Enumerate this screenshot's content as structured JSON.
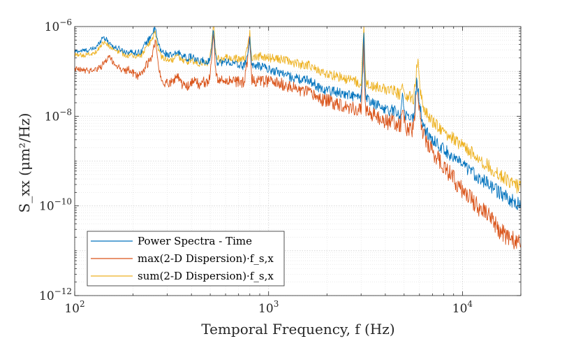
{
  "chart_data": {
    "type": "line",
    "xscale": "log",
    "yscale": "log",
    "xlim": [
      100,
      20000
    ],
    "ylim": [
      1e-12,
      1e-06
    ],
    "grid": true,
    "minor_grid": true,
    "legend_position": "bottom-left",
    "xlabel": "Temporal Frequency, f (Hz)",
    "ylabel": "S_xx (μm²/Hz)",
    "x_ticks": [
      {
        "value": 100,
        "base": "10",
        "exp": "2"
      },
      {
        "value": 1000,
        "base": "10",
        "exp": "3"
      },
      {
        "value": 10000,
        "base": "10",
        "exp": "4"
      }
    ],
    "y_ticks": [
      {
        "value": 1e-12,
        "base": "10",
        "exp": "−12"
      },
      {
        "value": 1e-10,
        "base": "10",
        "exp": "−10"
      },
      {
        "value": 1e-08,
        "base": "10",
        "exp": "−8"
      },
      {
        "value": 1e-06,
        "base": "10",
        "exp": "−6"
      }
    ],
    "series": [
      {
        "name": "Power Spectra - Time",
        "color": "#0072BD",
        "x": [
          100,
          110,
          120,
          130,
          140,
          150,
          160,
          170,
          180,
          190,
          200,
          210,
          220,
          230,
          240,
          250,
          260,
          270,
          280,
          290,
          300,
          320,
          340,
          360,
          380,
          400,
          420,
          440,
          460,
          480,
          500,
          510,
          520,
          530,
          540,
          560,
          580,
          600,
          650,
          700,
          750,
          780,
          800,
          820,
          850,
          900,
          950,
          1000,
          1100,
          1200,
          1300,
          1400,
          1500,
          1600,
          1700,
          1800,
          1900,
          2000,
          2200,
          2400,
          2600,
          2800,
          3000,
          3050,
          3100,
          3150,
          3200,
          3400,
          3600,
          3800,
          4000,
          4200,
          4400,
          4600,
          4800,
          4900,
          5000,
          5100,
          5200,
          5400,
          5600,
          5800,
          5900,
          6000,
          6200,
          6400,
          6600,
          6800,
          7000,
          7500,
          8000,
          8500,
          9000,
          10000,
          11000,
          12000,
          13000,
          14000,
          15000,
          16000,
          17000,
          18000,
          19000,
          20000
        ],
        "y": [
          2.8e-07,
          2.9e-07,
          3e-07,
          3.5e-07,
          6e-07,
          4.5e-07,
          3.4e-07,
          3.2e-07,
          2.8e-07,
          2.7e-07,
          2.7e-07,
          2.6e-07,
          2.8e-07,
          4e-07,
          5e-07,
          7e-07,
          9e-07,
          4e-07,
          2.8e-07,
          2.6e-07,
          2.4e-07,
          2.2e-07,
          2.7e-07,
          2.3e-07,
          1.9e-07,
          2.2e-07,
          1.8e-07,
          1.6e-07,
          1.8e-07,
          1.4e-07,
          2.2e-07,
          4e-07,
          9e-07,
          3e-07,
          1.6e-07,
          1.7e-07,
          1.5e-07,
          1.7e-07,
          1.5e-07,
          1.4e-07,
          1.3e-07,
          2.5e-07,
          5e-07,
          1.4e-07,
          1.3e-07,
          1.3e-07,
          1.3e-07,
          1.1e-07,
          1e-07,
          9e-08,
          7.5e-08,
          7e-08,
          6.3e-08,
          6.6e-08,
          5.5e-08,
          4.5e-08,
          4e-08,
          3.8e-08,
          3.6e-08,
          3.2e-08,
          3e-08,
          2.7e-08,
          2.5e-08,
          1e-07,
          8e-07,
          4e-08,
          2.4e-08,
          2e-08,
          1.8e-08,
          1.6e-08,
          1.5e-08,
          1.3e-08,
          1.4e-08,
          1.2e-08,
          1.1e-08,
          3e-08,
          1.4e-08,
          1.1e-08,
          9e-09,
          1e-08,
          9e-09,
          5.5e-08,
          4e-08,
          2e-08,
          8e-09,
          5e-09,
          4.2e-09,
          3.5e-09,
          3e-09,
          2.4e-09,
          1.8e-09,
          1.5e-09,
          1.2e-09,
          8e-10,
          6e-10,
          4.5e-10,
          3.5e-10,
          2.8e-10,
          2.2e-10,
          1.8e-10,
          1.5e-10,
          1.3e-10,
          1.15e-10,
          1.05e-10
        ]
      },
      {
        "name": "max(2-D Dispersion)·f_s,x",
        "color": "#D95319",
        "x": [
          100,
          110,
          120,
          130,
          140,
          150,
          160,
          170,
          180,
          190,
          200,
          210,
          220,
          230,
          240,
          250,
          260,
          270,
          280,
          290,
          300,
          320,
          340,
          360,
          380,
          400,
          420,
          440,
          460,
          480,
          500,
          510,
          520,
          530,
          540,
          560,
          580,
          600,
          650,
          700,
          750,
          780,
          800,
          820,
          850,
          900,
          950,
          1000,
          1100,
          1200,
          1300,
          1400,
          1500,
          1600,
          1700,
          1800,
          1900,
          2000,
          2200,
          2400,
          2600,
          2800,
          3000,
          3050,
          3100,
          3150,
          3200,
          3400,
          3600,
          3800,
          4000,
          4200,
          4400,
          4600,
          4800,
          4900,
          5000,
          5100,
          5200,
          5400,
          5600,
          5800,
          5900,
          6000,
          6200,
          6400,
          6600,
          6800,
          7000,
          7500,
          8000,
          8500,
          9000,
          10000,
          11000,
          12000,
          13000,
          14000,
          15000,
          16000,
          17000,
          18000,
          19000,
          20000
        ],
        "y": [
          1.1e-07,
          1.05e-07,
          1.05e-07,
          1.1e-07,
          1.4e-07,
          2.2e-07,
          1.5e-07,
          1.2e-07,
          1e-07,
          1.1e-07,
          9e-08,
          8e-08,
          9e-08,
          1.2e-07,
          1.6e-07,
          2e-07,
          5e-07,
          1.4e-07,
          6e-08,
          5.5e-08,
          5.5e-08,
          6e-08,
          8e-08,
          5e-08,
          4.5e-08,
          5.5e-08,
          6e-08,
          5e-08,
          6e-08,
          5.5e-08,
          8e-08,
          2e-07,
          8e-07,
          1.5e-07,
          7e-08,
          6.5e-08,
          6e-08,
          6.5e-08,
          6e-08,
          6e-08,
          5.5e-08,
          2e-07,
          6e-07,
          6.5e-08,
          6e-08,
          6e-08,
          6e-08,
          6e-08,
          5.5e-08,
          5e-08,
          4.5e-08,
          4e-08,
          3.6e-08,
          3.3e-08,
          3e-08,
          2.6e-08,
          2.3e-08,
          2.2e-08,
          2e-08,
          1.8e-08,
          1.6e-08,
          1.5e-08,
          1.3e-08,
          6e-08,
          4e-07,
          2e-08,
          1.3e-08,
          1.1e-08,
          1e-08,
          8.5e-09,
          8e-09,
          7e-09,
          8e-09,
          6.5e-09,
          6e-09,
          2e-08,
          8e-09,
          6e-09,
          5e-09,
          5.5e-09,
          5e-09,
          4e-08,
          3.5e-08,
          1.5e-08,
          5e-09,
          3e-09,
          2.5e-09,
          2e-09,
          1.6e-09,
          1.1e-09,
          8e-10,
          5.5e-10,
          4e-10,
          2.2e-10,
          1.5e-10,
          1e-10,
          7e-11,
          5e-11,
          3.5e-11,
          2.6e-11,
          2.1e-11,
          1.8e-11,
          1.5e-11,
          1.3e-11
        ]
      },
      {
        "name": "sum(2-D Dispersion)·f_s,x",
        "color": "#EDB120",
        "x": [
          100,
          110,
          120,
          130,
          140,
          150,
          160,
          170,
          180,
          190,
          200,
          210,
          220,
          230,
          240,
          250,
          260,
          270,
          280,
          290,
          300,
          320,
          340,
          360,
          380,
          400,
          420,
          440,
          460,
          480,
          500,
          510,
          520,
          530,
          540,
          560,
          580,
          600,
          650,
          700,
          750,
          780,
          800,
          820,
          850,
          900,
          950,
          1000,
          1100,
          1200,
          1300,
          1400,
          1500,
          1600,
          1700,
          1800,
          1900,
          2000,
          2200,
          2400,
          2600,
          2800,
          3000,
          3050,
          3100,
          3150,
          3200,
          3400,
          3600,
          3800,
          4000,
          4200,
          4400,
          4600,
          4800,
          4900,
          5000,
          5100,
          5200,
          5400,
          5600,
          5800,
          5900,
          6000,
          6200,
          6400,
          6600,
          6800,
          7000,
          7500,
          8000,
          8500,
          9000,
          10000,
          11000,
          12000,
          13000,
          14000,
          15000,
          16000,
          17000,
          18000,
          19000,
          20000
        ],
        "y": [
          2.3e-07,
          2.3e-07,
          2.4e-07,
          2.8e-07,
          4.5e-07,
          3.8e-07,
          3e-07,
          2.7e-07,
          2.4e-07,
          2.3e-07,
          2.2e-07,
          2.2e-07,
          2.3e-07,
          3e-07,
          4e-07,
          5e-07,
          8e-07,
          3e-07,
          2e-07,
          1.9e-07,
          1.8e-07,
          1.8e-07,
          2.2e-07,
          1.8e-07,
          1.6e-07,
          1.8e-07,
          1.6e-07,
          1.5e-07,
          1.7e-07,
          1.5e-07,
          2.2e-07,
          4.5e-07,
          1.2e-06,
          3.5e-07,
          2e-07,
          1.9e-07,
          1.8e-07,
          2e-07,
          1.9e-07,
          1.9e-07,
          1.8e-07,
          3.5e-07,
          7e-07,
          2e-07,
          2e-07,
          2.2e-07,
          2.1e-07,
          2e-07,
          1.9e-07,
          1.8e-07,
          1.6e-07,
          1.5e-07,
          1.4e-07,
          1.4e-07,
          1.2e-07,
          1e-07,
          9.5e-08,
          9e-08,
          8e-08,
          7e-08,
          6.5e-08,
          6e-08,
          5.5e-08,
          2e-07,
          9e-07,
          8e-08,
          5.5e-08,
          5e-08,
          4.5e-08,
          4.2e-08,
          4e-08,
          3.5e-08,
          3.8e-08,
          3.2e-08,
          3e-08,
          7e-08,
          3.5e-08,
          3e-08,
          2.5e-08,
          2.7e-08,
          2.5e-08,
          1.2e-07,
          1.4e-07,
          5e-08,
          2.2e-08,
          1.3e-08,
          1.1e-08,
          9e-09,
          7.5e-09,
          6e-09,
          4.5e-09,
          3.8e-09,
          3.2e-09,
          2.2e-09,
          1.6e-09,
          1.2e-09,
          9e-10,
          7e-10,
          5.5e-10,
          4.5e-10,
          3.8e-10,
          3.2e-10,
          2.8e-10,
          2.5e-10
        ]
      }
    ]
  }
}
